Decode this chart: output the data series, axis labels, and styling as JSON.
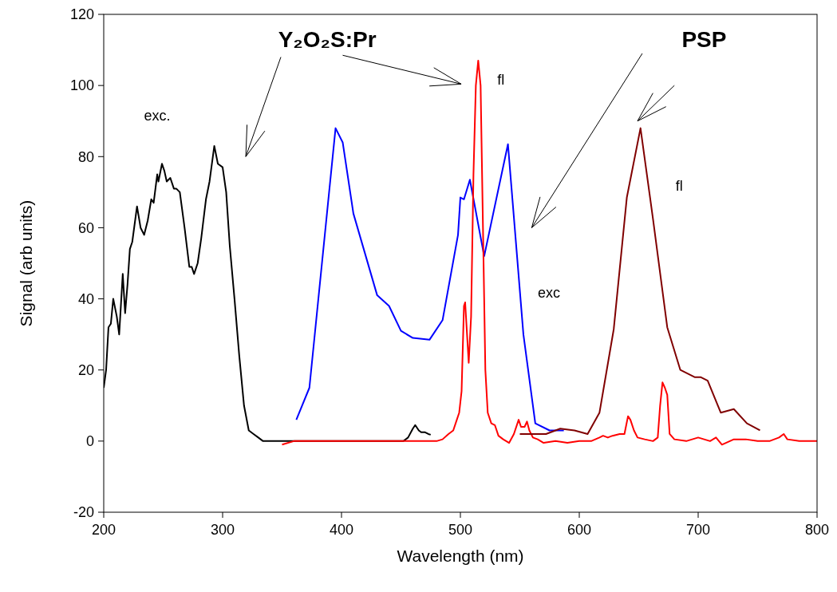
{
  "chart_data": {
    "type": "line",
    "xlabel": "Wavelength (nm)",
    "ylabel": "Signal (arb units)",
    "xlim": [
      200,
      800
    ],
    "xticks": [
      200,
      300,
      400,
      500,
      600,
      700,
      800
    ],
    "ylim": [
      -20,
      120
    ],
    "yticks": [
      -20,
      0,
      20,
      40,
      60,
      80,
      100,
      120
    ],
    "grid": false,
    "marker": "none",
    "line_style": "solid",
    "series": [
      {
        "color": "#000000",
        "x": [
          200,
          202,
          204,
          206,
          208,
          211,
          213,
          216,
          218,
          220,
          222,
          224,
          228,
          231,
          234,
          237,
          240,
          242,
          245,
          246,
          249,
          251,
          253,
          256,
          259,
          261,
          264,
          268,
          272,
          274,
          276,
          279,
          282,
          286,
          289,
          293,
          296,
          300,
          303,
          306,
          310,
          314,
          318,
          322,
          326,
          330,
          334,
          340,
          360,
          380,
          400,
          420,
          440,
          452,
          456,
          460,
          462,
          465,
          467,
          470,
          473,
          475
        ],
        "values": [
          15,
          20,
          32,
          33,
          40,
          35,
          30,
          47,
          36,
          44,
          54,
          56,
          66,
          60,
          58,
          62,
          68,
          67,
          75,
          73,
          78,
          76,
          73,
          74,
          71,
          71,
          70,
          60,
          49,
          49,
          47,
          50,
          57,
          68,
          73,
          83,
          78,
          77,
          70,
          55,
          40,
          24,
          10,
          3,
          2,
          1,
          0,
          0,
          0,
          0,
          0,
          0,
          0,
          0,
          1,
          3.5,
          4.5,
          3,
          2.5,
          2.5,
          2,
          1.8
        ]
      },
      {
        "color": "#0000ff",
        "x": [
          362,
          373,
          395,
          401,
          410,
          430,
          440,
          450,
          460,
          474,
          485,
          498,
          500,
          503,
          508,
          520,
          540,
          553,
          563,
          575,
          587
        ],
        "values": [
          6,
          15,
          88,
          84,
          64,
          41,
          38,
          31,
          29,
          28.5,
          34,
          58,
          68.5,
          68,
          73.5,
          52,
          83.5,
          30,
          5,
          3,
          3
        ]
      },
      {
        "color": "#ff0000",
        "x": [
          350,
          360,
          380,
          400,
          420,
          440,
          460,
          480,
          485,
          490,
          494,
          497,
          499,
          501,
          503,
          504,
          507,
          509,
          511,
          513,
          515,
          517,
          519,
          521,
          523,
          526,
          529,
          532,
          536,
          541,
          545,
          549,
          551,
          554,
          556,
          558,
          561,
          565,
          570,
          580,
          590,
          600,
          610,
          617,
          620,
          624,
          628,
          634,
          638,
          641,
          643,
          646,
          649,
          655,
          662,
          666,
          668,
          670,
          672,
          674,
          676,
          680,
          690,
          700,
          710,
          715,
          720,
          730,
          740,
          750,
          760,
          768,
          772,
          775,
          785,
          800
        ],
        "values": [
          -1,
          0,
          0,
          0,
          0,
          0,
          0,
          0,
          0.5,
          2,
          3,
          6,
          8,
          14,
          38,
          39,
          22,
          35,
          75,
          100,
          107,
          100,
          60,
          20,
          8,
          5,
          4.5,
          1.5,
          0.5,
          -0.5,
          2,
          6,
          4,
          4,
          5.5,
          3,
          1,
          0.5,
          -0.5,
          0,
          -0.5,
          0,
          0,
          1,
          1.5,
          1,
          1.5,
          2,
          2,
          7,
          6,
          3,
          1,
          0.5,
          0,
          1,
          10,
          16.5,
          15,
          13,
          2,
          0.5,
          0,
          1,
          0,
          1,
          -1,
          0.5,
          0.5,
          0,
          0,
          1,
          2,
          0.5,
          0,
          0
        ]
      },
      {
        "color": "#800000",
        "x": [
          550,
          572,
          584,
          596,
          607,
          617,
          629,
          640,
          651.5,
          662,
          674,
          685,
          697,
          702,
          708,
          719,
          730,
          741,
          752
        ],
        "values": [
          2,
          2,
          3.5,
          3,
          2,
          8,
          31.5,
          68.5,
          88,
          62.5,
          32,
          20,
          18,
          18,
          17,
          8,
          9,
          5,
          3
        ]
      }
    ],
    "annotations": [
      "Y₂O₂S:Pr",
      "PSP",
      "exc.",
      "fl",
      "exc",
      "fl"
    ]
  }
}
